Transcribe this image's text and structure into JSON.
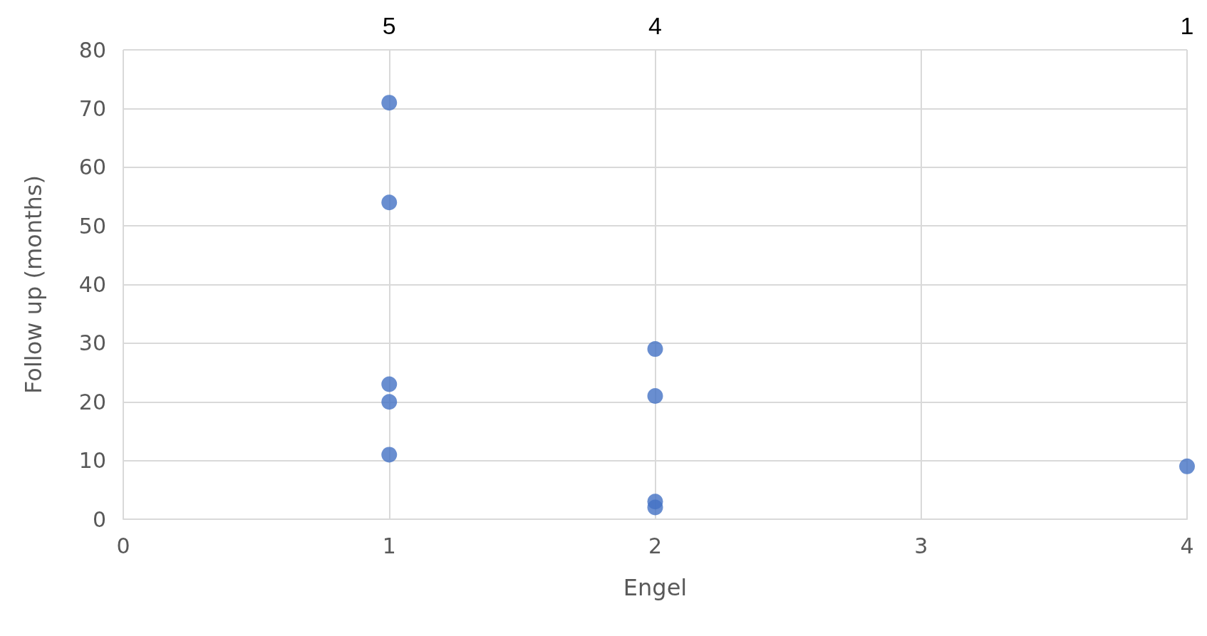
{
  "chart_data": {
    "type": "scatter",
    "xlabel": "Engel",
    "ylabel": "Follow up (months)",
    "x": [
      1,
      1,
      1,
      1,
      1,
      2,
      2,
      2,
      2,
      4
    ],
    "values": [
      71,
      54,
      23,
      20,
      11,
      29,
      21,
      3,
      2,
      9
    ],
    "color": "#4472c4",
    "xlim": [
      0,
      4
    ],
    "xticks": [
      0,
      1,
      2,
      3,
      4
    ],
    "ylim": [
      0,
      80
    ],
    "yticks": [
      0,
      10,
      20,
      30,
      40,
      50,
      60,
      70,
      80
    ],
    "grid": true,
    "marker": "circle",
    "annotations": [
      "5",
      "4",
      "1"
    ]
  }
}
